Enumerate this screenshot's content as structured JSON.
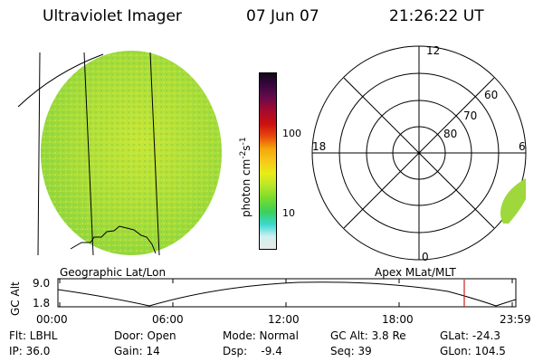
{
  "header": {
    "instrument": "Ultraviolet Imager",
    "date": "07 Jun 07",
    "time": "21:26:22 UT"
  },
  "left_panel": {
    "caption": "Geographic Lat/Lon"
  },
  "colorbar": {
    "unit_main": "photon cm",
    "unit_exp1": "-2",
    "unit_mid": "s",
    "unit_exp2": "-1",
    "tick_100": "100",
    "tick_10": "10",
    "colors": [
      "#e8e8e8",
      "#d0f0f0",
      "#3ad8d0",
      "#39d05c",
      "#7bdc2a",
      "#b8e62a",
      "#e8ec18",
      "#f7c81a",
      "#f5a60a",
      "#e84a0e",
      "#cc1010",
      "#a30a30",
      "#6a0a4a",
      "#3a0840",
      "#140818"
    ]
  },
  "polar": {
    "caption": "Apex MLat/MLT",
    "mlt_labels": {
      "top": "12",
      "left": "18",
      "right": "6",
      "bottom": "0"
    },
    "lat_labels": [
      "60",
      "70",
      "80"
    ]
  },
  "altitude_strip": {
    "axis_label": "GC Alt",
    "y_ticks": [
      "9.0",
      "1.8"
    ],
    "x_ticks": [
      "00:00",
      "06:00",
      "12:00",
      "18:00",
      "23:59"
    ],
    "current_time_fraction": 0.894
  },
  "footer": {
    "flt": "Flt: LBHL",
    "door": "Door: Open",
    "mode": "Mode: Normal",
    "gc_alt": "GC Alt: 3.8 Re",
    "glat": "GLat: -24.3",
    "ip": "IP: 36.0",
    "gain": "Gain: 14",
    "dsp": "Dsp:    -9.4",
    "seq": "Seq: 39",
    "glon": "GLon: 104.5"
  },
  "colors": {
    "disk_fill": "#a8de3a",
    "time_marker": "#cc2020"
  }
}
